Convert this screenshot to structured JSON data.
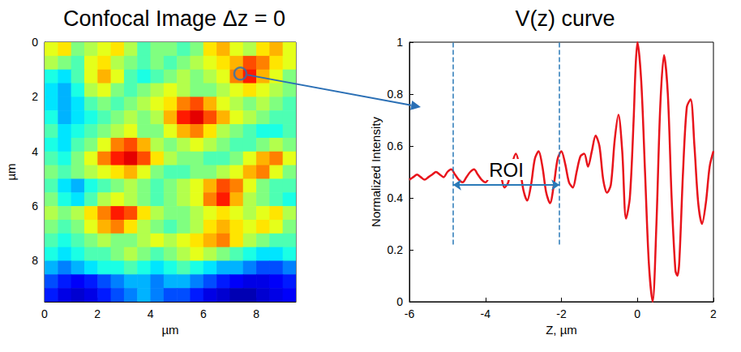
{
  "chart_data": [
    {
      "type": "heatmap",
      "title": "Confocal Image Δz = 0",
      "x_label": "µm",
      "y_label": "µm",
      "xlim": [
        0,
        9.5
      ],
      "ylim": [
        0,
        9.5
      ],
      "xticks": [
        0,
        2,
        4,
        6,
        8
      ],
      "yticks": [
        0,
        2,
        4,
        6,
        8
      ],
      "clim": [
        0,
        1
      ],
      "grid": false,
      "highlight": {
        "x": 7.4,
        "y": 1.15,
        "color": "#2a6fb5"
      },
      "cells": [
        [
          0.6,
          0.65,
          0.5,
          0.55,
          0.6,
          0.65,
          0.55,
          0.45,
          0.5,
          0.5,
          0.45,
          0.5,
          0.65,
          0.7,
          0.6,
          0.55,
          0.65,
          0.7,
          0.6
        ],
        [
          0.55,
          0.5,
          0.45,
          0.6,
          0.65,
          0.55,
          0.5,
          0.45,
          0.5,
          0.45,
          0.5,
          0.55,
          0.6,
          0.65,
          0.7,
          0.8,
          0.75,
          0.65,
          0.6
        ],
        [
          0.4,
          0.35,
          0.45,
          0.6,
          0.7,
          0.6,
          0.45,
          0.4,
          0.45,
          0.5,
          0.55,
          0.5,
          0.55,
          0.6,
          0.75,
          0.85,
          0.7,
          0.6,
          0.5
        ],
        [
          0.35,
          0.3,
          0.4,
          0.55,
          0.6,
          0.5,
          0.45,
          0.5,
          0.55,
          0.6,
          0.55,
          0.5,
          0.5,
          0.55,
          0.6,
          0.65,
          0.6,
          0.55,
          0.5
        ],
        [
          0.35,
          0.3,
          0.35,
          0.45,
          0.5,
          0.45,
          0.5,
          0.55,
          0.6,
          0.65,
          0.75,
          0.8,
          0.7,
          0.6,
          0.55,
          0.5,
          0.55,
          0.5,
          0.45
        ],
        [
          0.4,
          0.3,
          0.35,
          0.4,
          0.45,
          0.5,
          0.55,
          0.5,
          0.55,
          0.7,
          0.85,
          0.9,
          0.8,
          0.7,
          0.6,
          0.55,
          0.5,
          0.45,
          0.45
        ],
        [
          0.45,
          0.35,
          0.4,
          0.45,
          0.5,
          0.55,
          0.6,
          0.5,
          0.5,
          0.6,
          0.7,
          0.75,
          0.65,
          0.55,
          0.5,
          0.45,
          0.4,
          0.4,
          0.45
        ],
        [
          0.4,
          0.35,
          0.45,
          0.5,
          0.6,
          0.75,
          0.8,
          0.7,
          0.55,
          0.5,
          0.55,
          0.6,
          0.55,
          0.5,
          0.45,
          0.45,
          0.5,
          0.55,
          0.5
        ],
        [
          0.45,
          0.4,
          0.5,
          0.6,
          0.75,
          0.85,
          0.9,
          0.8,
          0.65,
          0.55,
          0.5,
          0.5,
          0.45,
          0.45,
          0.5,
          0.6,
          0.7,
          0.75,
          0.6
        ],
        [
          0.5,
          0.45,
          0.5,
          0.55,
          0.6,
          0.65,
          0.7,
          0.6,
          0.5,
          0.45,
          0.45,
          0.5,
          0.5,
          0.55,
          0.6,
          0.7,
          0.75,
          0.6,
          0.5
        ],
        [
          0.45,
          0.35,
          0.3,
          0.4,
          0.45,
          0.5,
          0.55,
          0.5,
          0.45,
          0.5,
          0.55,
          0.6,
          0.7,
          0.8,
          0.75,
          0.6,
          0.5,
          0.45,
          0.45
        ],
        [
          0.5,
          0.4,
          0.35,
          0.45,
          0.55,
          0.6,
          0.55,
          0.5,
          0.45,
          0.5,
          0.55,
          0.6,
          0.75,
          0.85,
          0.7,
          0.55,
          0.5,
          0.45,
          0.4
        ],
        [
          0.55,
          0.5,
          0.55,
          0.65,
          0.75,
          0.85,
          0.8,
          0.65,
          0.55,
          0.5,
          0.5,
          0.55,
          0.6,
          0.65,
          0.6,
          0.55,
          0.6,
          0.65,
          0.55
        ],
        [
          0.5,
          0.45,
          0.5,
          0.6,
          0.7,
          0.75,
          0.65,
          0.55,
          0.5,
          0.45,
          0.5,
          0.55,
          0.65,
          0.7,
          0.65,
          0.6,
          0.65,
          0.6,
          0.5
        ],
        [
          0.45,
          0.4,
          0.45,
          0.5,
          0.55,
          0.5,
          0.5,
          0.55,
          0.6,
          0.55,
          0.6,
          0.65,
          0.7,
          0.75,
          0.65,
          0.55,
          0.5,
          0.45,
          0.45
        ],
        [
          0.4,
          0.35,
          0.4,
          0.45,
          0.45,
          0.5,
          0.55,
          0.5,
          0.45,
          0.5,
          0.55,
          0.6,
          0.55,
          0.5,
          0.45,
          0.4,
          0.35,
          0.35,
          0.4
        ],
        [
          0.3,
          0.25,
          0.3,
          0.35,
          0.4,
          0.4,
          0.45,
          0.4,
          0.35,
          0.4,
          0.45,
          0.4,
          0.35,
          0.3,
          0.3,
          0.25,
          0.2,
          0.2,
          0.25
        ],
        [
          0.2,
          0.15,
          0.12,
          0.15,
          0.2,
          0.25,
          0.3,
          0.3,
          0.25,
          0.3,
          0.3,
          0.25,
          0.2,
          0.15,
          0.12,
          0.1,
          0.1,
          0.12,
          0.15
        ],
        [
          0.15,
          0.1,
          0.08,
          0.1,
          0.15,
          0.2,
          0.25,
          0.3,
          0.25,
          0.2,
          0.2,
          0.15,
          0.1,
          0.08,
          0.05,
          0.05,
          0.08,
          0.1,
          0.12
        ]
      ]
    },
    {
      "type": "line",
      "title": "V(z) curve",
      "x_label": "Z, µm",
      "y_label": "Normalized Intensity",
      "xlim": [
        -6,
        2
      ],
      "ylim": [
        0,
        1
      ],
      "xticks": [
        -6,
        -4,
        -2,
        0,
        2
      ],
      "yticks": [
        0,
        0.2,
        0.4,
        0.6,
        0.8,
        1
      ],
      "grid": false,
      "color": "#e8141c",
      "x": [
        -6,
        -5.9,
        -5.8,
        -5.7,
        -5.6,
        -5.5,
        -5.4,
        -5.3,
        -5.2,
        -5.1,
        -5,
        -4.9,
        -4.8,
        -4.7,
        -4.6,
        -4.5,
        -4.4,
        -4.3,
        -4.2,
        -4.1,
        -4,
        -3.9,
        -3.8,
        -3.7,
        -3.6,
        -3.5,
        -3.4,
        -3.3,
        -3.2,
        -3.1,
        -3,
        -2.9,
        -2.8,
        -2.7,
        -2.6,
        -2.5,
        -2.4,
        -2.3,
        -2.2,
        -2.1,
        -2,
        -1.9,
        -1.8,
        -1.7,
        -1.6,
        -1.5,
        -1.4,
        -1.3,
        -1.2,
        -1.1,
        -1,
        -0.9,
        -0.8,
        -0.7,
        -0.6,
        -0.5,
        -0.4,
        -0.3,
        -0.2,
        -0.1,
        -0.05,
        0,
        0.1,
        0.2,
        0.3,
        0.4,
        0.5,
        0.6,
        0.7,
        0.8,
        0.9,
        1,
        1.05,
        1.1,
        1.2,
        1.3,
        1.4,
        1.5,
        1.6,
        1.7,
        1.8,
        1.9,
        2
      ],
      "values": [
        0.47,
        0.48,
        0.49,
        0.48,
        0.47,
        0.48,
        0.49,
        0.5,
        0.49,
        0.48,
        0.5,
        0.51,
        0.49,
        0.47,
        0.46,
        0.48,
        0.5,
        0.51,
        0.49,
        0.47,
        0.46,
        0.48,
        0.51,
        0.52,
        0.49,
        0.44,
        0.46,
        0.53,
        0.57,
        0.52,
        0.43,
        0.39,
        0.45,
        0.55,
        0.58,
        0.52,
        0.42,
        0.38,
        0.45,
        0.55,
        0.58,
        0.53,
        0.46,
        0.44,
        0.5,
        0.56,
        0.57,
        0.52,
        0.58,
        0.64,
        0.6,
        0.47,
        0.42,
        0.45,
        0.62,
        0.72,
        0.58,
        0.32,
        0.4,
        0.7,
        0.9,
        1,
        0.85,
        0.5,
        0.15,
        0,
        0.3,
        0.75,
        0.95,
        0.8,
        0.4,
        0.12,
        0.1,
        0.15,
        0.5,
        0.75,
        0.78,
        0.6,
        0.38,
        0.3,
        0.38,
        0.52,
        0.58
      ],
      "annotations": {
        "roi": {
          "label": "ROI",
          "x": [
            -4.85,
            -2.05
          ],
          "y": 0.45,
          "color": "#2a7ab8"
        },
        "dashed_lines": {
          "x": [
            -4.85,
            -2.05
          ],
          "y": [
            0.22,
            1
          ],
          "color": "#2a7ab8",
          "line_style": "dashed"
        }
      }
    }
  ]
}
